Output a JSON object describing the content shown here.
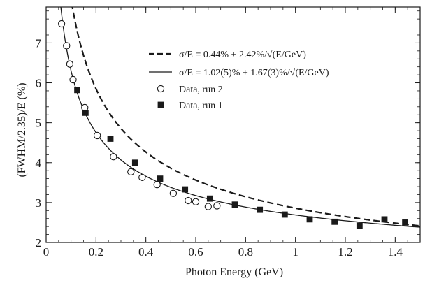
{
  "chart_data": {
    "type": "scatter",
    "xlabel": "Photon Energy (GeV)",
    "ylabel": "(FWHM/2.35)/E (%)",
    "xlim": [
      0,
      1.5
    ],
    "ylim": [
      2,
      7.9
    ],
    "xticks": [
      0,
      0.2,
      0.4,
      0.6,
      0.8,
      1,
      1.2,
      1.4
    ],
    "xtick_labels": [
      "0",
      "0.2",
      "0.4",
      "0.6",
      "0.8",
      "1",
      "1.2",
      "1.4"
    ],
    "yticks": [
      2,
      3,
      4,
      5,
      6,
      7
    ],
    "ytick_labels": [
      "2",
      "3",
      "4",
      "5",
      "6",
      "7"
    ],
    "legend_position": "top-right",
    "curves": [
      {
        "name": "σ/E = 0.44% + 2.42%/√(E/GeV)",
        "style": "dashed",
        "a": 0.44,
        "b": 2.42
      },
      {
        "name": "σ/E = 1.02(5)% + 1.67(3)%/√(E/GeV)",
        "style": "solid",
        "a": 1.02,
        "b": 1.67
      }
    ],
    "series": [
      {
        "name": "Data, run 2",
        "marker": "open-circle",
        "x": [
          0.062,
          0.082,
          0.095,
          0.108,
          0.155,
          0.205,
          0.27,
          0.34,
          0.385,
          0.445,
          0.51,
          0.57,
          0.6,
          0.65,
          0.685
        ],
        "y": [
          7.48,
          6.93,
          6.47,
          6.08,
          5.38,
          4.68,
          4.15,
          3.77,
          3.63,
          3.45,
          3.23,
          3.05,
          3.02,
          2.9,
          2.92
        ]
      },
      {
        "name": "Data, run 1",
        "marker": "filled-square",
        "x": [
          0.125,
          0.158,
          0.258,
          0.357,
          0.457,
          0.557,
          0.657,
          0.757,
          0.857,
          0.957,
          1.057,
          1.157,
          1.257,
          1.357,
          1.44
        ],
        "y": [
          5.82,
          5.25,
          4.6,
          4.0,
          3.6,
          3.33,
          3.1,
          2.95,
          2.82,
          2.7,
          2.58,
          2.52,
          2.42,
          2.58,
          2.5
        ]
      }
    ]
  }
}
